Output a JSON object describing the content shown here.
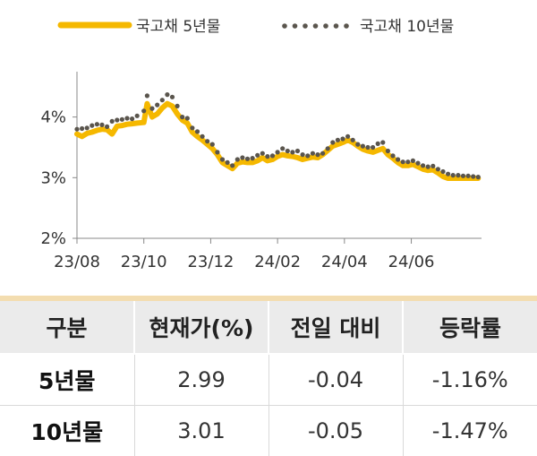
{
  "chart_data": {
    "type": "line",
    "legend_position": "top",
    "y_ticks": [
      "4%",
      "3%",
      "2%"
    ],
    "y_tick_values": [
      4,
      3,
      2
    ],
    "ylim": [
      2,
      4.6
    ],
    "x_ticks": [
      "23/08",
      "23/10",
      "23/12",
      "24/02",
      "24/04",
      "24/06"
    ],
    "x_tick_values": [
      0,
      2,
      4,
      6,
      8,
      10
    ],
    "xlim": [
      0,
      12.1
    ],
    "series": [
      {
        "name": "국고채 5년물",
        "style": "line",
        "color": "#f5b800",
        "x": [
          0,
          0.15,
          0.3,
          0.45,
          0.6,
          0.75,
          0.9,
          1.05,
          1.2,
          1.35,
          1.5,
          1.65,
          1.8,
          2.0,
          2.1,
          2.25,
          2.4,
          2.55,
          2.7,
          2.85,
          3.0,
          3.15,
          3.3,
          3.45,
          3.6,
          3.75,
          3.9,
          4.05,
          4.2,
          4.35,
          4.5,
          4.65,
          4.8,
          4.95,
          5.1,
          5.25,
          5.4,
          5.55,
          5.7,
          5.85,
          6.0,
          6.15,
          6.3,
          6.45,
          6.6,
          6.75,
          6.9,
          7.05,
          7.2,
          7.35,
          7.5,
          7.65,
          7.8,
          7.95,
          8.1,
          8.25,
          8.4,
          8.55,
          8.7,
          8.85,
          9.0,
          9.15,
          9.3,
          9.45,
          9.6,
          9.75,
          9.9,
          10.05,
          10.2,
          10.35,
          10.5,
          10.65,
          10.8,
          10.95,
          11.1,
          11.25,
          11.4,
          11.55,
          11.7,
          11.85,
          12.0
        ],
        "y": [
          3.72,
          3.68,
          3.73,
          3.75,
          3.78,
          3.8,
          3.79,
          3.72,
          3.85,
          3.86,
          3.88,
          3.89,
          3.9,
          3.91,
          4.22,
          4.0,
          4.05,
          4.15,
          4.22,
          4.18,
          4.05,
          3.95,
          3.9,
          3.75,
          3.68,
          3.62,
          3.55,
          3.48,
          3.38,
          3.25,
          3.2,
          3.15,
          3.24,
          3.26,
          3.25,
          3.25,
          3.28,
          3.33,
          3.28,
          3.3,
          3.35,
          3.38,
          3.36,
          3.35,
          3.33,
          3.3,
          3.32,
          3.34,
          3.33,
          3.38,
          3.45,
          3.52,
          3.55,
          3.58,
          3.62,
          3.58,
          3.52,
          3.47,
          3.44,
          3.42,
          3.45,
          3.48,
          3.38,
          3.32,
          3.25,
          3.2,
          3.2,
          3.22,
          3.18,
          3.14,
          3.12,
          3.13,
          3.08,
          3.02,
          2.99,
          2.99,
          2.99,
          2.99,
          2.99,
          2.99,
          2.99
        ]
      },
      {
        "name": "국고채 10년물",
        "style": "dotted",
        "color": "#5a554d",
        "x": [
          0,
          0.15,
          0.3,
          0.45,
          0.6,
          0.75,
          0.9,
          1.05,
          1.2,
          1.35,
          1.5,
          1.65,
          1.8,
          2.0,
          2.1,
          2.25,
          2.4,
          2.55,
          2.7,
          2.85,
          3.0,
          3.15,
          3.3,
          3.45,
          3.6,
          3.75,
          3.9,
          4.05,
          4.2,
          4.35,
          4.5,
          4.65,
          4.8,
          4.95,
          5.1,
          5.25,
          5.4,
          5.55,
          5.7,
          5.85,
          6.0,
          6.15,
          6.3,
          6.45,
          6.6,
          6.75,
          6.9,
          7.05,
          7.2,
          7.35,
          7.5,
          7.65,
          7.8,
          7.95,
          8.1,
          8.25,
          8.4,
          8.55,
          8.7,
          8.85,
          9.0,
          9.15,
          9.3,
          9.45,
          9.6,
          9.75,
          9.9,
          10.05,
          10.2,
          10.35,
          10.5,
          10.65,
          10.8,
          10.95,
          11.1,
          11.25,
          11.4,
          11.55,
          11.7,
          11.85,
          12.0
        ],
        "y": [
          3.8,
          3.81,
          3.82,
          3.86,
          3.88,
          3.87,
          3.84,
          3.93,
          3.95,
          3.96,
          3.98,
          3.97,
          4.02,
          4.1,
          4.35,
          4.14,
          4.2,
          4.28,
          4.37,
          4.33,
          4.18,
          4.0,
          3.98,
          3.82,
          3.76,
          3.68,
          3.6,
          3.55,
          3.42,
          3.3,
          3.25,
          3.2,
          3.3,
          3.33,
          3.31,
          3.32,
          3.37,
          3.4,
          3.35,
          3.36,
          3.42,
          3.48,
          3.44,
          3.42,
          3.44,
          3.38,
          3.36,
          3.4,
          3.38,
          3.4,
          3.48,
          3.58,
          3.62,
          3.64,
          3.68,
          3.62,
          3.55,
          3.52,
          3.5,
          3.5,
          3.56,
          3.58,
          3.44,
          3.36,
          3.3,
          3.26,
          3.26,
          3.28,
          3.24,
          3.2,
          3.18,
          3.19,
          3.14,
          3.1,
          3.06,
          3.04,
          3.04,
          3.03,
          3.03,
          3.02,
          3.01
        ]
      }
    ]
  },
  "table": {
    "headers": [
      "구분",
      "현재가(%)",
      "전일 대비",
      "등락률"
    ],
    "rows": [
      [
        "5년물",
        "2.99",
        "-0.04",
        "-1.16%"
      ],
      [
        "10년물",
        "3.01",
        "-0.05",
        "-1.47%"
      ]
    ]
  }
}
